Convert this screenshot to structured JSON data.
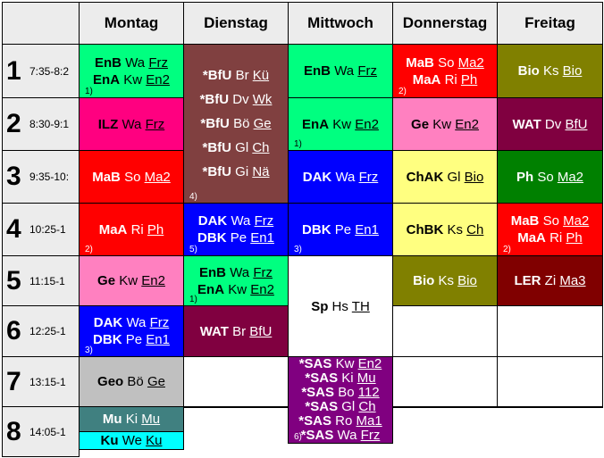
{
  "days": [
    "Montag",
    "Dienstag",
    "Mittwoch",
    "Donnerstag",
    "Freitag"
  ],
  "periods": [
    {
      "num": "1",
      "time": "7:35-8:2"
    },
    {
      "num": "2",
      "time": "8:30-9:1"
    },
    {
      "num": "3",
      "time": "9:35-10:"
    },
    {
      "num": "4",
      "time": "10:25-1"
    },
    {
      "num": "5",
      "time": "11:15-1"
    },
    {
      "num": "6",
      "time": "12:25-1"
    },
    {
      "num": "7",
      "time": "13:15-1"
    },
    {
      "num": "8",
      "time": "14:05-1"
    }
  ],
  "colors": {
    "green": "#00ff80",
    "red": "#ff0000",
    "olive": "#808000",
    "pink": "#ff80c0",
    "crimson": "#ff0080",
    "brown": "#804040",
    "maroon": "#800040",
    "blue": "#0000ff",
    "yellow": "#ffff80",
    "darkgreen": "#008000",
    "darkred": "#800000",
    "purple": "#800080",
    "grey": "#c0c0c0",
    "teal": "#408080",
    "cyan": "#00ffff",
    "white": "#ffffff"
  },
  "lessons": [
    {
      "id": "mo-1",
      "day": 0,
      "start": 0,
      "span": 1,
      "color": "green",
      "text": "#000000",
      "footnote": "1)",
      "lines": [
        {
          "subject": "EnB",
          "teacher": "Wa",
          "room": "Frz"
        },
        {
          "subject": "EnA",
          "teacher": "Kw",
          "room": "En2"
        }
      ]
    },
    {
      "id": "mo-2",
      "day": 0,
      "start": 1,
      "span": 1,
      "color": "crimson",
      "text": "#000000",
      "footnote": "",
      "lines": [
        {
          "subject": "ILZ",
          "teacher": "Wa",
          "room": "Frz"
        }
      ]
    },
    {
      "id": "mo-3",
      "day": 0,
      "start": 2,
      "span": 1,
      "color": "red",
      "text": "#ffffff",
      "footnote": "",
      "lines": [
        {
          "subject": "MaB",
          "teacher": "So",
          "room": "Ma2"
        }
      ]
    },
    {
      "id": "mo-4",
      "day": 0,
      "start": 3,
      "span": 1,
      "color": "red",
      "text": "#ffffff",
      "footnote": "2)",
      "lines": [
        {
          "subject": "MaA",
          "teacher": "Ri",
          "room": "Ph"
        }
      ]
    },
    {
      "id": "mo-5",
      "day": 0,
      "start": 4,
      "span": 1,
      "color": "pink",
      "text": "#000000",
      "footnote": "",
      "lines": [
        {
          "subject": "Ge",
          "teacher": "Kw",
          "room": "En2"
        }
      ]
    },
    {
      "id": "mo-6",
      "day": 0,
      "start": 5,
      "span": 1,
      "color": "blue",
      "text": "#ffffff",
      "footnote": "3)",
      "lines": [
        {
          "subject": "DAK",
          "teacher": "Wa",
          "room": "Frz"
        },
        {
          "subject": "DBK",
          "teacher": "Pe",
          "room": "En1"
        }
      ]
    },
    {
      "id": "mo-7",
      "day": 0,
      "start": 6,
      "span": 1,
      "color": "grey",
      "text": "#000000",
      "footnote": "",
      "lines": [
        {
          "subject": "Geo",
          "teacher": "Bö",
          "room": "Ge"
        }
      ]
    },
    {
      "id": "mo-8a",
      "day": 0,
      "start": 7,
      "span": 0.5,
      "color": "teal",
      "text": "#ffffff",
      "footnote": "",
      "lines": [
        {
          "subject": "Mu",
          "teacher": "Ki",
          "room": "Mu"
        }
      ]
    },
    {
      "id": "mo-8b",
      "day": 0,
      "start": 7.5,
      "span": 0.5,
      "color": "cyan",
      "text": "#000000",
      "footnote": "",
      "lines": [
        {
          "subject": "Ku",
          "teacher": "We",
          "room": "Ku"
        }
      ]
    },
    {
      "id": "di-1",
      "day": 1,
      "start": 0,
      "span": 3,
      "color": "brown",
      "text": "#ffffff",
      "footnote": "4)",
      "lines": [
        {
          "subject": "*BfU",
          "teacher": "Br",
          "room": "Kü"
        },
        {
          "subject": "*BfU",
          "teacher": "Dv",
          "room": "Wk"
        },
        {
          "subject": "*BfU",
          "teacher": "Bö",
          "room": "Ge"
        },
        {
          "subject": "*BfU",
          "teacher": "Gl",
          "room": "Ch"
        },
        {
          "subject": "*BfU",
          "teacher": "Gi",
          "room": "Nä"
        }
      ]
    },
    {
      "id": "di-4",
      "day": 1,
      "start": 3,
      "span": 1,
      "color": "blue",
      "text": "#ffffff",
      "footnote": "5)",
      "lines": [
        {
          "subject": "DAK",
          "teacher": "Wa",
          "room": "Frz"
        },
        {
          "subject": "DBK",
          "teacher": "Pe",
          "room": "En1"
        }
      ]
    },
    {
      "id": "di-5",
      "day": 1,
      "start": 4,
      "span": 1,
      "color": "green",
      "text": "#000000",
      "footnote": "1)",
      "lines": [
        {
          "subject": "EnB",
          "teacher": "Wa",
          "room": "Frz"
        },
        {
          "subject": "EnA",
          "teacher": "Kw",
          "room": "En2"
        }
      ]
    },
    {
      "id": "di-6",
      "day": 1,
      "start": 5,
      "span": 1,
      "color": "maroon",
      "text": "#ffffff",
      "footnote": "",
      "lines": [
        {
          "subject": "WAT",
          "teacher": "Br",
          "room": "BfU"
        }
      ]
    },
    {
      "id": "di-7",
      "day": 1,
      "start": 6,
      "span": 1,
      "color": "white",
      "text": "#000000",
      "footnote": "",
      "lines": []
    },
    {
      "id": "di-8",
      "day": 1,
      "start": 7,
      "span": 1,
      "color": "white",
      "text": "#000000",
      "footnote": "",
      "lines": []
    },
    {
      "id": "mi-1",
      "day": 2,
      "start": 0,
      "span": 1,
      "color": "green",
      "text": "#000000",
      "footnote": "",
      "lines": [
        {
          "subject": "EnB",
          "teacher": "Wa",
          "room": "Frz"
        }
      ]
    },
    {
      "id": "mi-2",
      "day": 2,
      "start": 1,
      "span": 1,
      "color": "green",
      "text": "#000000",
      "footnote": "1)",
      "lines": [
        {
          "subject": "EnA",
          "teacher": "Kw",
          "room": "En2"
        }
      ]
    },
    {
      "id": "mi-3",
      "day": 2,
      "start": 2,
      "span": 1,
      "color": "blue",
      "text": "#ffffff",
      "footnote": "",
      "lines": [
        {
          "subject": "DAK",
          "teacher": "Wa",
          "room": "Frz"
        }
      ]
    },
    {
      "id": "mi-4",
      "day": 2,
      "start": 3,
      "span": 1,
      "color": "blue",
      "text": "#ffffff",
      "footnote": "3)",
      "lines": [
        {
          "subject": "DBK",
          "teacher": "Pe",
          "room": "En1"
        }
      ]
    },
    {
      "id": "mi-5",
      "day": 2,
      "start": 4,
      "span": 2,
      "color": "white",
      "text": "#000000",
      "footnote": "",
      "lines": [
        {
          "subject": "Sp",
          "teacher": "Hs",
          "room": "TH"
        }
      ]
    },
    {
      "id": "mi-7",
      "day": 2,
      "start": 6,
      "span": 2,
      "color": "purple",
      "text": "#ffffff",
      "footnote": "6)",
      "lines": [
        {
          "subject": "*SAS",
          "teacher": "Kw",
          "room": "En2"
        },
        {
          "subject": "*SAS",
          "teacher": "Ki",
          "room": "Mu"
        },
        {
          "subject": "*SAS",
          "teacher": "Bo",
          "room": "112"
        },
        {
          "subject": "*SAS",
          "teacher": "Gl",
          "room": "Ch"
        },
        {
          "subject": "*SAS",
          "teacher": "Ro",
          "room": "Ma1"
        },
        {
          "subject": "*SAS",
          "teacher": "Wa",
          "room": "Frz"
        }
      ]
    },
    {
      "id": "do-1",
      "day": 3,
      "start": 0,
      "span": 1,
      "color": "red",
      "text": "#ffffff",
      "footnote": "2)",
      "lines": [
        {
          "subject": "MaB",
          "teacher": "So",
          "room": "Ma2"
        },
        {
          "subject": "MaA",
          "teacher": "Ri",
          "room": "Ph"
        }
      ]
    },
    {
      "id": "do-2",
      "day": 3,
      "start": 1,
      "span": 1,
      "color": "pink",
      "text": "#000000",
      "footnote": "",
      "lines": [
        {
          "subject": "Ge",
          "teacher": "Kw",
          "room": "En2"
        }
      ]
    },
    {
      "id": "do-3",
      "day": 3,
      "start": 2,
      "span": 1,
      "color": "yellow",
      "text": "#000000",
      "footnote": "",
      "lines": [
        {
          "subject": "ChAK",
          "teacher": "Gl",
          "room": "Bio"
        }
      ]
    },
    {
      "id": "do-4",
      "day": 3,
      "start": 3,
      "span": 1,
      "color": "yellow",
      "text": "#000000",
      "footnote": "",
      "lines": [
        {
          "subject": "ChBK",
          "teacher": "Ks",
          "room": "Ch"
        }
      ]
    },
    {
      "id": "do-5",
      "day": 3,
      "start": 4,
      "span": 1,
      "color": "olive",
      "text": "#ffffff",
      "footnote": "",
      "lines": [
        {
          "subject": "Bio",
          "teacher": "Ks",
          "room": "Bio"
        }
      ]
    },
    {
      "id": "do-6",
      "day": 3,
      "start": 5,
      "span": 1,
      "color": "white",
      "text": "#000000",
      "footnote": "",
      "lines": []
    },
    {
      "id": "do-7",
      "day": 3,
      "start": 6,
      "span": 1,
      "color": "white",
      "text": "#000000",
      "footnote": "",
      "lines": []
    },
    {
      "id": "do-8",
      "day": 3,
      "start": 7,
      "span": 1,
      "color": "white",
      "text": "#000000",
      "footnote": "",
      "lines": []
    },
    {
      "id": "fr-1",
      "day": 4,
      "start": 0,
      "span": 1,
      "color": "olive",
      "text": "#ffffff",
      "footnote": "",
      "lines": [
        {
          "subject": "Bio",
          "teacher": "Ks",
          "room": "Bio"
        }
      ]
    },
    {
      "id": "fr-2",
      "day": 4,
      "start": 1,
      "span": 1,
      "color": "maroon",
      "text": "#ffffff",
      "footnote": "",
      "lines": [
        {
          "subject": "WAT",
          "teacher": "Dv",
          "room": "BfU"
        }
      ]
    },
    {
      "id": "fr-3",
      "day": 4,
      "start": 2,
      "span": 1,
      "color": "darkgreen",
      "text": "#ffffff",
      "footnote": "",
      "lines": [
        {
          "subject": "Ph",
          "teacher": "So",
          "room": "Ma2"
        }
      ]
    },
    {
      "id": "fr-4",
      "day": 4,
      "start": 3,
      "span": 1,
      "color": "red",
      "text": "#ffffff",
      "footnote": "2)",
      "lines": [
        {
          "subject": "MaB",
          "teacher": "So",
          "room": "Ma2"
        },
        {
          "subject": "MaA",
          "teacher": "Ri",
          "room": "Ph"
        }
      ]
    },
    {
      "id": "fr-5",
      "day": 4,
      "start": 4,
      "span": 1,
      "color": "darkred",
      "text": "#ffffff",
      "footnote": "",
      "lines": [
        {
          "subject": "LER",
          "teacher": "Zi",
          "room": "Ma3"
        }
      ]
    },
    {
      "id": "fr-6",
      "day": 4,
      "start": 5,
      "span": 1,
      "color": "white",
      "text": "#000000",
      "footnote": "",
      "lines": []
    },
    {
      "id": "fr-7",
      "day": 4,
      "start": 6,
      "span": 1,
      "color": "white",
      "text": "#000000",
      "footnote": "",
      "lines": []
    },
    {
      "id": "fr-8",
      "day": 4,
      "start": 7,
      "span": 1,
      "color": "white",
      "text": "#000000",
      "footnote": "",
      "lines": []
    }
  ]
}
